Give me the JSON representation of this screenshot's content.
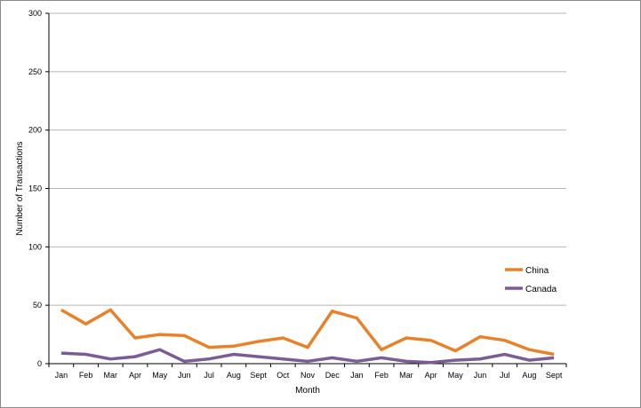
{
  "chart_data": {
    "type": "line",
    "title": "",
    "xlabel": "Month",
    "ylabel": "Number  of Transactions",
    "categories": [
      "Jan",
      "Feb",
      "Mar",
      "Apr",
      "May",
      "Jun",
      "Jul",
      "Aug",
      "Sept",
      "Oct",
      "Nov",
      "Dec",
      "Jan",
      "Feb",
      "Mar",
      "Apr",
      "May",
      "Jun",
      "Jul",
      "Aug",
      "Sept"
    ],
    "ylim": [
      0,
      300
    ],
    "yticks": [
      0,
      50,
      100,
      150,
      200,
      250,
      300
    ],
    "grid": true,
    "legend_position": "right",
    "series": [
      {
        "name": "China",
        "color": "#E8822A",
        "values": [
          46,
          34,
          46,
          22,
          25,
          24,
          14,
          15,
          19,
          22,
          14,
          45,
          39,
          12,
          22,
          20,
          11,
          23,
          20,
          12,
          8
        ]
      },
      {
        "name": "Canada",
        "color": "#7B5C94",
        "values": [
          9,
          8,
          4,
          6,
          12,
          2,
          4,
          8,
          6,
          4,
          2,
          5,
          2,
          5,
          2,
          1,
          3,
          4,
          8,
          3,
          5
        ]
      }
    ]
  }
}
